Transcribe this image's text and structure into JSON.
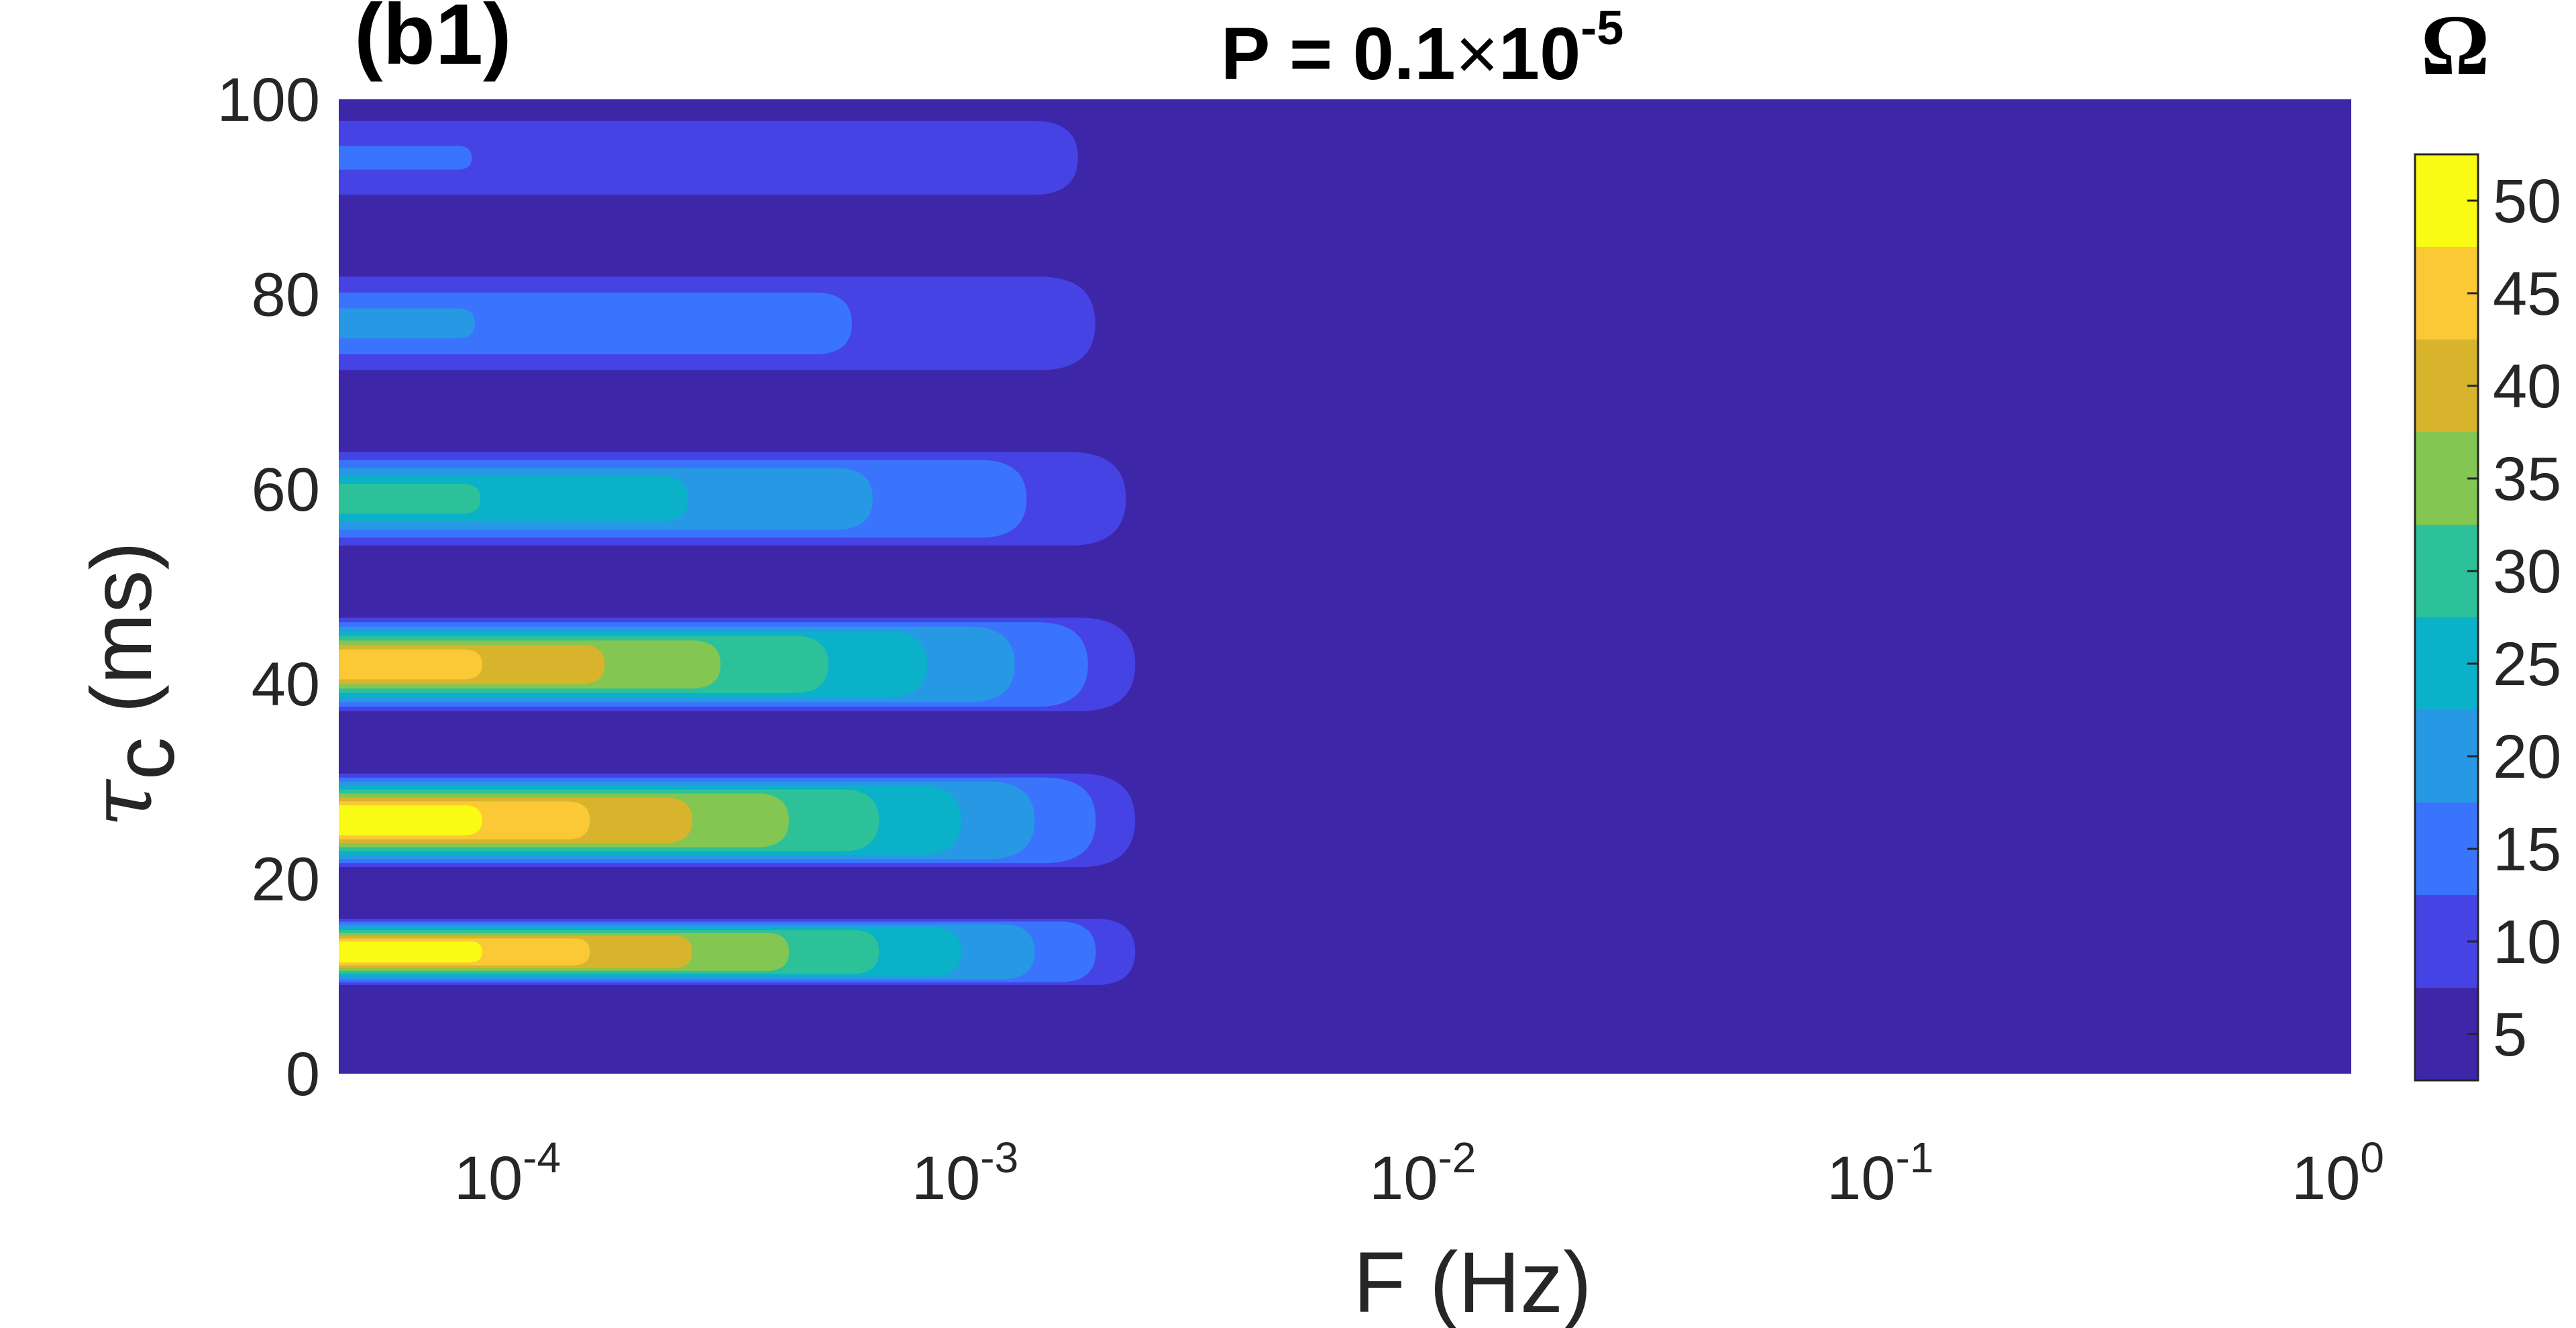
{
  "chart_data": {
    "type": "heatmap",
    "panel_label": "(b1)",
    "title": {
      "prefix": "P = 0.1",
      "times": "×",
      "base": "10",
      "exp": "-5"
    },
    "xlabel": "F (Hz)",
    "ylabel": {
      "symbol": "τ",
      "sub": "c",
      "rest": " (ms)"
    },
    "xscale": "log",
    "xlim": [
      4e-05,
      1
    ],
    "ylim": [
      0,
      100
    ],
    "xticks": [
      {
        "value": 0.0001,
        "base": "10",
        "exp": "-4"
      },
      {
        "value": 0.001,
        "base": "10",
        "exp": "-3"
      },
      {
        "value": 0.01,
        "base": "10",
        "exp": "-2"
      },
      {
        "value": 0.1,
        "base": "10",
        "exp": "-1"
      },
      {
        "value": 1,
        "base": "10",
        "exp": "0"
      }
    ],
    "yticks": [
      "0",
      "20",
      "40",
      "60",
      "80",
      "100"
    ],
    "background_level": 5,
    "colorbar": {
      "title": "Ω",
      "range": [
        2.5,
        52.5
      ],
      "ticks": [
        "5",
        "10",
        "15",
        "20",
        "25",
        "30",
        "35",
        "40",
        "45",
        "50"
      ],
      "levels": [
        {
          "min": 2.5,
          "max": 7.5,
          "color": "#3e26a8"
        },
        {
          "min": 7.5,
          "max": 12.5,
          "color": "#4543e4"
        },
        {
          "min": 12.5,
          "max": 17.5,
          "color": "#3a74fd"
        },
        {
          "min": 17.5,
          "max": 22.5,
          "color": "#2798e3"
        },
        {
          "min": 22.5,
          "max": 27.5,
          "color": "#0bb0c9"
        },
        {
          "min": 27.5,
          "max": 32.5,
          "color": "#2dc19a"
        },
        {
          "min": 32.5,
          "max": 37.5,
          "color": "#83c651"
        },
        {
          "min": 37.5,
          "max": 42.5,
          "color": "#d7b42c"
        },
        {
          "min": 42.5,
          "max": 47.5,
          "color": "#fbc836"
        },
        {
          "min": 47.5,
          "max": 52.5,
          "color": "#f9fb15"
        }
      ]
    },
    "bands": [
      {
        "tau_ms": 12.5,
        "omega_max": 50,
        "f_extent_hz": 0.0022,
        "half_width_ms": 3.4
      },
      {
        "tau_ms": 26,
        "omega_max": 50,
        "f_extent_hz": 0.0022,
        "half_width_ms": 4.8
      },
      {
        "tau_ms": 42,
        "omega_max": 44,
        "f_extent_hz": 0.0022,
        "half_width_ms": 4.8
      },
      {
        "tau_ms": 59,
        "omega_max": 30,
        "f_extent_hz": 0.0021,
        "half_width_ms": 4.8
      },
      {
        "tau_ms": 77,
        "omega_max": 22,
        "f_extent_hz": 0.0018,
        "half_width_ms": 4.8
      },
      {
        "tau_ms": 94,
        "omega_max": 17,
        "f_extent_hz": 0.00165,
        "half_width_ms": 3.8
      }
    ]
  }
}
